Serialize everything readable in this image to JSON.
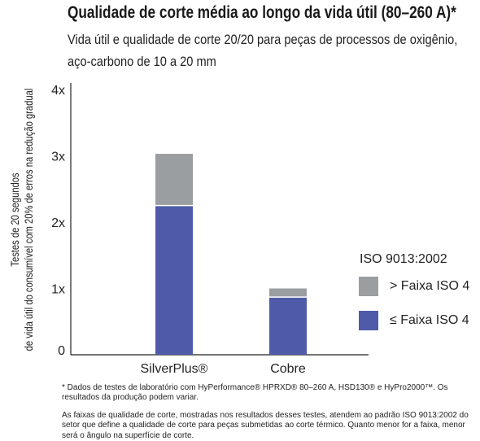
{
  "chart_data": {
    "type": "bar",
    "stacked": true,
    "title": "Qualidade de corte média ao longo da vida útil (80–260 A)*",
    "subtitle_lines": [
      "Vida útil e qualidade de corte 20/20 para peças de processos de oxigênio,",
      "aço-carbono de 10 a 20 mm"
    ],
    "ylabel_lines": [
      "Testes de 20 segundos",
      "de vida útil do consumível com 20% de erros na redução gradual"
    ],
    "xlabel": "",
    "categories": [
      "SilverPlus®",
      "Cobre"
    ],
    "series": [
      {
        "name": "≤ Faixa ISO 4",
        "color": "#4f5aa8",
        "values": [
          2.25,
          0.87
        ]
      },
      {
        "name": "> Faixa ISO 4",
        "color": "#9a9ea1",
        "values": [
          0.78,
          0.13
        ]
      }
    ],
    "yticks": [
      "0",
      "1x",
      "2x",
      "3x",
      "4x"
    ],
    "ylim": [
      0,
      4
    ],
    "grid": false,
    "legend_title": "ISO 9013:2002",
    "legend_position": "right"
  },
  "footnotes": {
    "note1": "* Dados de testes de laboratório com HyPerformance® HPRXD® 80–260 A, HSD130® e HyPro2000™. Os resultados da produção podem variar.",
    "note2": "As faixas de qualidade de corte, mostradas nos resultados desses testes, atendem ao padrão ISO 9013:2002 do setor que define a qualidade de corte para peças submetidas ao corte térmico. Quanto menor for a faixa, menor será o ângulo na superfície de corte."
  }
}
